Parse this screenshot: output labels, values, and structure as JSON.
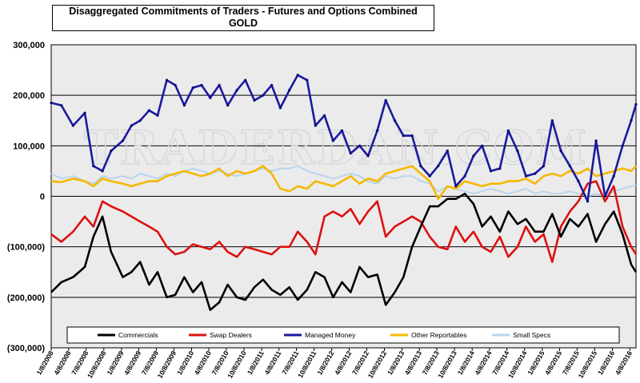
{
  "chart_data": {
    "type": "line",
    "title": "Disaggregated Commitments of Traders - Futures and Options Combined",
    "subtitle": "GOLD",
    "watermark": "TRADERDAN.COM",
    "ylim": [
      -300000,
      300000
    ],
    "y_ticks": [
      300000,
      200000,
      100000,
      0,
      -100000,
      -200000,
      -300000
    ],
    "y_tick_labels": [
      "300,000",
      "200,000",
      "100,000",
      "0",
      "(100,000)",
      "(200,000)",
      "(300,000)"
    ],
    "x_start": "2008-01-08",
    "x_end": "2016-05-10",
    "x_tick_labels": [
      "1/8/2008",
      "4/8/2008",
      "7/8/2008",
      "10/8/2008",
      "1/8/2009",
      "4/8/2009",
      "7/8/2009",
      "10/8/2009",
      "1/8/2010",
      "4/8/2010",
      "7/8/2010",
      "10/8/2010",
      "1/8/2011",
      "4/8/2011",
      "7/8/2011",
      "10/8/2011",
      "1/8/2012",
      "4/8/2012",
      "7/8/2012",
      "10/8/2012",
      "1/8/2013",
      "4/8/2013",
      "7/8/2013",
      "10/8/2013",
      "1/8/2014",
      "4/8/2014",
      "7/8/2014",
      "10/8/2014",
      "1/8/2015",
      "4/8/2015",
      "7/8/2015",
      "10/8/2015",
      "1/8/2016",
      "4/8/2016"
    ],
    "series": [
      {
        "name": "Commercials",
        "color": "#000000",
        "dates": [
          "2008-01-08",
          "2008-03-01",
          "2008-05-01",
          "2008-07-01",
          "2008-08-15",
          "2008-10-01",
          "2008-11-15",
          "2009-01-15",
          "2009-03-01",
          "2009-04-15",
          "2009-06-01",
          "2009-07-15",
          "2009-09-01",
          "2009-10-15",
          "2009-12-01",
          "2010-01-15",
          "2010-03-01",
          "2010-04-15",
          "2010-06-01",
          "2010-07-15",
          "2010-09-01",
          "2010-10-15",
          "2010-12-01",
          "2011-01-15",
          "2011-03-01",
          "2011-04-15",
          "2011-06-01",
          "2011-07-15",
          "2011-09-01",
          "2011-10-15",
          "2011-12-01",
          "2012-01-15",
          "2012-03-01",
          "2012-04-15",
          "2012-06-01",
          "2012-07-15",
          "2012-09-01",
          "2012-10-15",
          "2012-12-01",
          "2013-01-15",
          "2013-03-01",
          "2013-04-15",
          "2013-06-01",
          "2013-07-15",
          "2013-09-01",
          "2013-10-15",
          "2013-12-01",
          "2014-01-15",
          "2014-03-01",
          "2014-04-15",
          "2014-06-01",
          "2014-07-15",
          "2014-09-01",
          "2014-10-15",
          "2014-12-01",
          "2015-01-15",
          "2015-03-01",
          "2015-04-15",
          "2015-06-01",
          "2015-07-15",
          "2015-09-01",
          "2015-10-15",
          "2015-12-01",
          "2016-01-15",
          "2016-03-01",
          "2016-04-15",
          "2016-05-10"
        ],
        "values": [
          -190000,
          -170000,
          -160000,
          -140000,
          -80000,
          -40000,
          -110000,
          -160000,
          -150000,
          -130000,
          -175000,
          -150000,
          -200000,
          -195000,
          -160000,
          -190000,
          -170000,
          -225000,
          -210000,
          -175000,
          -200000,
          -205000,
          -180000,
          -165000,
          -185000,
          -195000,
          -180000,
          -205000,
          -185000,
          -150000,
          -160000,
          -200000,
          -170000,
          -190000,
          -140000,
          -160000,
          -155000,
          -215000,
          -190000,
          -160000,
          -100000,
          -60000,
          -20000,
          -20000,
          -5000,
          -5000,
          5000,
          -15000,
          -60000,
          -40000,
          -70000,
          -30000,
          -55000,
          -45000,
          -70000,
          -70000,
          -35000,
          -80000,
          -45000,
          -60000,
          -35000,
          -90000,
          -55000,
          -30000,
          -75000,
          -135000,
          -150000
        ]
      },
      {
        "name": "Swap Dealers",
        "color": "#dd1111",
        "dates": [
          "2008-01-08",
          "2008-03-01",
          "2008-05-01",
          "2008-07-01",
          "2008-08-15",
          "2008-10-01",
          "2008-11-15",
          "2009-01-15",
          "2009-03-01",
          "2009-04-15",
          "2009-06-01",
          "2009-07-15",
          "2009-09-01",
          "2009-10-15",
          "2009-12-01",
          "2010-01-15",
          "2010-03-01",
          "2010-04-15",
          "2010-06-01",
          "2010-07-15",
          "2010-09-01",
          "2010-10-15",
          "2010-12-01",
          "2011-01-15",
          "2011-03-01",
          "2011-04-15",
          "2011-06-01",
          "2011-07-15",
          "2011-09-01",
          "2011-10-15",
          "2011-12-01",
          "2012-01-15",
          "2012-03-01",
          "2012-04-15",
          "2012-06-01",
          "2012-07-15",
          "2012-09-01",
          "2012-10-15",
          "2012-12-01",
          "2013-01-15",
          "2013-03-01",
          "2013-04-15",
          "2013-06-01",
          "2013-07-15",
          "2013-09-01",
          "2013-10-15",
          "2013-12-01",
          "2014-01-15",
          "2014-03-01",
          "2014-04-15",
          "2014-06-01",
          "2014-07-15",
          "2014-09-01",
          "2014-10-15",
          "2014-12-01",
          "2015-01-15",
          "2015-03-01",
          "2015-04-15",
          "2015-06-01",
          "2015-07-15",
          "2015-09-01",
          "2015-10-15",
          "2015-12-01",
          "2016-01-15",
          "2016-03-01",
          "2016-04-15",
          "2016-05-10"
        ],
        "values": [
          -75000,
          -90000,
          -70000,
          -40000,
          -60000,
          -10000,
          -20000,
          -30000,
          -40000,
          -50000,
          -60000,
          -70000,
          -100000,
          -115000,
          -110000,
          -95000,
          -100000,
          -105000,
          -90000,
          -110000,
          -120000,
          -100000,
          -105000,
          -110000,
          -115000,
          -100000,
          -100000,
          -70000,
          -90000,
          -115000,
          -40000,
          -30000,
          -40000,
          -25000,
          -55000,
          -30000,
          -10000,
          -80000,
          -60000,
          -50000,
          -40000,
          -50000,
          -80000,
          -100000,
          -105000,
          -60000,
          -90000,
          -70000,
          -100000,
          -110000,
          -80000,
          -120000,
          -100000,
          -60000,
          -90000,
          -75000,
          -130000,
          -60000,
          -30000,
          -10000,
          25000,
          30000,
          -10000,
          20000,
          -60000,
          -100000,
          -115000
        ]
      },
      {
        "name": "Managed Money",
        "color": "#1a1aa0",
        "dates": [
          "2008-01-08",
          "2008-03-01",
          "2008-05-01",
          "2008-07-01",
          "2008-08-15",
          "2008-10-01",
          "2008-11-15",
          "2009-01-15",
          "2009-03-01",
          "2009-04-15",
          "2009-06-01",
          "2009-07-15",
          "2009-09-01",
          "2009-10-15",
          "2009-12-01",
          "2010-01-15",
          "2010-03-01",
          "2010-04-15",
          "2010-06-01",
          "2010-07-15",
          "2010-09-01",
          "2010-10-15",
          "2010-12-01",
          "2011-01-15",
          "2011-03-01",
          "2011-04-15",
          "2011-06-01",
          "2011-07-15",
          "2011-09-01",
          "2011-10-15",
          "2011-12-01",
          "2012-01-15",
          "2012-03-01",
          "2012-04-15",
          "2012-06-01",
          "2012-07-15",
          "2012-09-01",
          "2012-10-15",
          "2012-12-01",
          "2013-01-15",
          "2013-03-01",
          "2013-04-15",
          "2013-06-01",
          "2013-07-15",
          "2013-09-01",
          "2013-10-15",
          "2013-12-01",
          "2014-01-15",
          "2014-03-01",
          "2014-04-15",
          "2014-06-01",
          "2014-07-15",
          "2014-09-01",
          "2014-10-15",
          "2014-12-01",
          "2015-01-15",
          "2015-03-01",
          "2015-04-15",
          "2015-06-01",
          "2015-07-15",
          "2015-09-01",
          "2015-10-15",
          "2015-12-01",
          "2016-01-15",
          "2016-03-01",
          "2016-04-15",
          "2016-05-10"
        ],
        "values": [
          185000,
          180000,
          140000,
          165000,
          60000,
          50000,
          90000,
          110000,
          140000,
          150000,
          170000,
          160000,
          230000,
          220000,
          180000,
          215000,
          220000,
          195000,
          220000,
          180000,
          210000,
          230000,
          190000,
          200000,
          220000,
          175000,
          210000,
          240000,
          230000,
          140000,
          160000,
          110000,
          130000,
          85000,
          100000,
          80000,
          130000,
          190000,
          150000,
          120000,
          120000,
          60000,
          40000,
          60000,
          90000,
          20000,
          40000,
          80000,
          100000,
          50000,
          55000,
          130000,
          90000,
          40000,
          45000,
          60000,
          150000,
          90000,
          60000,
          30000,
          -10000,
          110000,
          0,
          40000,
          100000,
          150000,
          182000
        ]
      },
      {
        "name": "Other Reportables",
        "color": "#f5b800",
        "dates": [
          "2008-01-08",
          "2008-03-01",
          "2008-05-01",
          "2008-07-01",
          "2008-08-15",
          "2008-10-01",
          "2008-11-15",
          "2009-01-15",
          "2009-03-01",
          "2009-04-15",
          "2009-06-01",
          "2009-07-15",
          "2009-09-01",
          "2009-10-15",
          "2009-12-01",
          "2010-01-15",
          "2010-03-01",
          "2010-04-15",
          "2010-06-01",
          "2010-07-15",
          "2010-09-01",
          "2010-10-15",
          "2010-12-01",
          "2011-01-15",
          "2011-03-01",
          "2011-04-15",
          "2011-06-01",
          "2011-07-15",
          "2011-09-01",
          "2011-10-15",
          "2011-12-01",
          "2012-01-15",
          "2012-03-01",
          "2012-04-15",
          "2012-06-01",
          "2012-07-15",
          "2012-09-01",
          "2012-10-15",
          "2012-12-01",
          "2013-01-15",
          "2013-03-01",
          "2013-04-15",
          "2013-06-01",
          "2013-07-15",
          "2013-09-01",
          "2013-10-15",
          "2013-12-01",
          "2014-01-15",
          "2014-03-01",
          "2014-04-15",
          "2014-06-01",
          "2014-07-15",
          "2014-09-01",
          "2014-10-15",
          "2014-12-01",
          "2015-01-15",
          "2015-03-01",
          "2015-04-15",
          "2015-06-01",
          "2015-07-15",
          "2015-09-01",
          "2015-10-15",
          "2015-12-01",
          "2016-01-15",
          "2016-03-01",
          "2016-04-15",
          "2016-05-10"
        ],
        "values": [
          30000,
          28000,
          35000,
          30000,
          20000,
          35000,
          30000,
          25000,
          20000,
          25000,
          30000,
          30000,
          40000,
          45000,
          50000,
          45000,
          40000,
          45000,
          55000,
          40000,
          50000,
          45000,
          50000,
          60000,
          45000,
          15000,
          10000,
          20000,
          15000,
          30000,
          25000,
          20000,
          30000,
          40000,
          25000,
          35000,
          30000,
          45000,
          50000,
          55000,
          60000,
          45000,
          30000,
          -5000,
          20000,
          15000,
          30000,
          25000,
          20000,
          25000,
          25000,
          30000,
          30000,
          35000,
          25000,
          40000,
          45000,
          40000,
          50000,
          45000,
          55000,
          40000,
          45000,
          50000,
          55000,
          50000,
          60000
        ]
      },
      {
        "name": "Small Specs",
        "color": "#b8d4ee",
        "dates": [
          "2008-01-08",
          "2008-03-01",
          "2008-05-01",
          "2008-07-01",
          "2008-08-15",
          "2008-10-01",
          "2008-11-15",
          "2009-01-15",
          "2009-03-01",
          "2009-04-15",
          "2009-06-01",
          "2009-07-15",
          "2009-09-01",
          "2009-10-15",
          "2009-12-01",
          "2010-01-15",
          "2010-03-01",
          "2010-04-15",
          "2010-06-01",
          "2010-07-15",
          "2010-09-01",
          "2010-10-15",
          "2010-12-01",
          "2011-01-15",
          "2011-03-01",
          "2011-04-15",
          "2011-06-01",
          "2011-07-15",
          "2011-09-01",
          "2011-10-15",
          "2011-12-01",
          "2012-01-15",
          "2012-03-01",
          "2012-04-15",
          "2012-06-01",
          "2012-07-15",
          "2012-09-01",
          "2012-10-15",
          "2012-12-01",
          "2013-01-15",
          "2013-03-01",
          "2013-04-15",
          "2013-06-01",
          "2013-07-15",
          "2013-09-01",
          "2013-10-15",
          "2013-12-01",
          "2014-01-15",
          "2014-03-01",
          "2014-04-15",
          "2014-06-01",
          "2014-07-15",
          "2014-09-01",
          "2014-10-15",
          "2014-12-01",
          "2015-01-15",
          "2015-03-01",
          "2015-04-15",
          "2015-06-01",
          "2015-07-15",
          "2015-09-01",
          "2015-10-15",
          "2015-12-01",
          "2016-01-15",
          "2016-03-01",
          "2016-04-15",
          "2016-05-10"
        ],
        "values": [
          45000,
          35000,
          40000,
          30000,
          25000,
          40000,
          35000,
          40000,
          35000,
          45000,
          40000,
          35000,
          45000,
          40000,
          50000,
          55000,
          50000,
          45000,
          50000,
          45000,
          40000,
          45000,
          50000,
          55000,
          50000,
          55000,
          55000,
          60000,
          50000,
          45000,
          40000,
          35000,
          40000,
          45000,
          40000,
          30000,
          25000,
          40000,
          35000,
          40000,
          40000,
          30000,
          25000,
          10000,
          20000,
          15000,
          10000,
          5000,
          10000,
          15000,
          10000,
          5000,
          10000,
          15000,
          5000,
          10000,
          5000,
          5000,
          10000,
          5000,
          0,
          5000,
          0,
          10000,
          15000,
          20000,
          22000
        ]
      }
    ],
    "legend": [
      "Commercials",
      "Swap Dealers",
      "Managed Money",
      "Other Reportables",
      "Small Specs"
    ],
    "legend_position": "bottom-inside"
  }
}
